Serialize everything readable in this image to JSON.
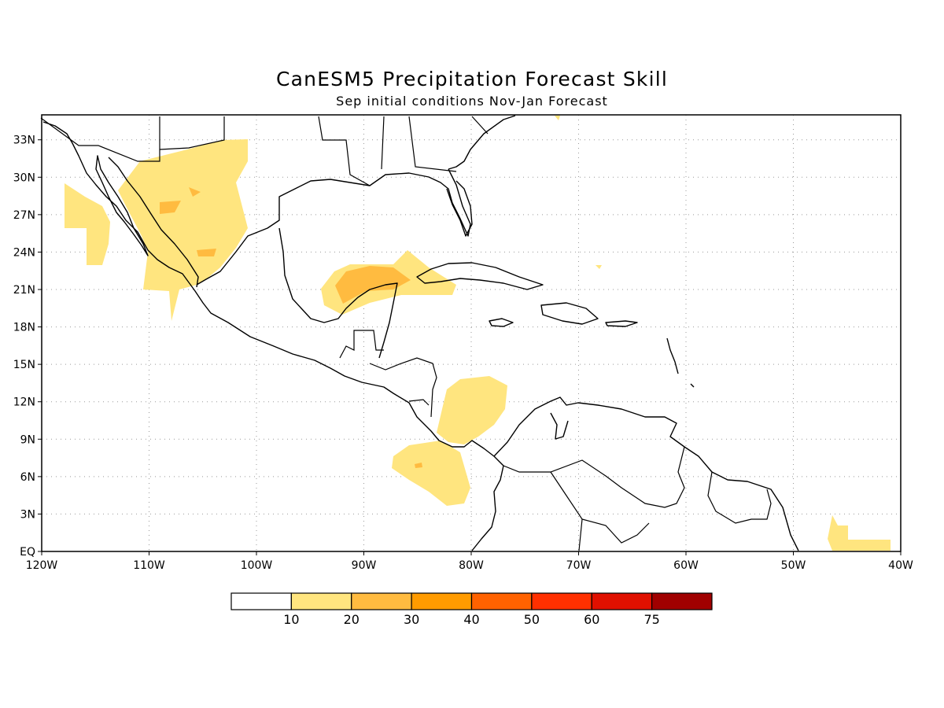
{
  "title": "CanESM5 Precipitation Forecast Skill",
  "subtitle": "Sep initial conditions  Nov-Jan Forecast",
  "map": {
    "projection": "equirectangular",
    "lon_range": [
      -120,
      -40
    ],
    "lat_range": [
      0,
      35
    ],
    "grid": "dotted",
    "lon_ticks": [
      "120W",
      "110W",
      "100W",
      "90W",
      "80W",
      "70W",
      "60W",
      "50W",
      "40W"
    ],
    "lat_ticks": [
      "EQ",
      "3N",
      "6N",
      "9N",
      "12N",
      "15N",
      "18N",
      "21N",
      "24N",
      "27N",
      "30N",
      "33N"
    ]
  },
  "colorbar": {
    "colors": [
      "#ffffff",
      "#ffe57f",
      "#ffbb40",
      "#ff9b00",
      "#ff6200",
      "#ff3000",
      "#e01000",
      "#a00000"
    ],
    "labels": [
      "10",
      "20",
      "30",
      "40",
      "50",
      "60",
      "75"
    ]
  }
}
